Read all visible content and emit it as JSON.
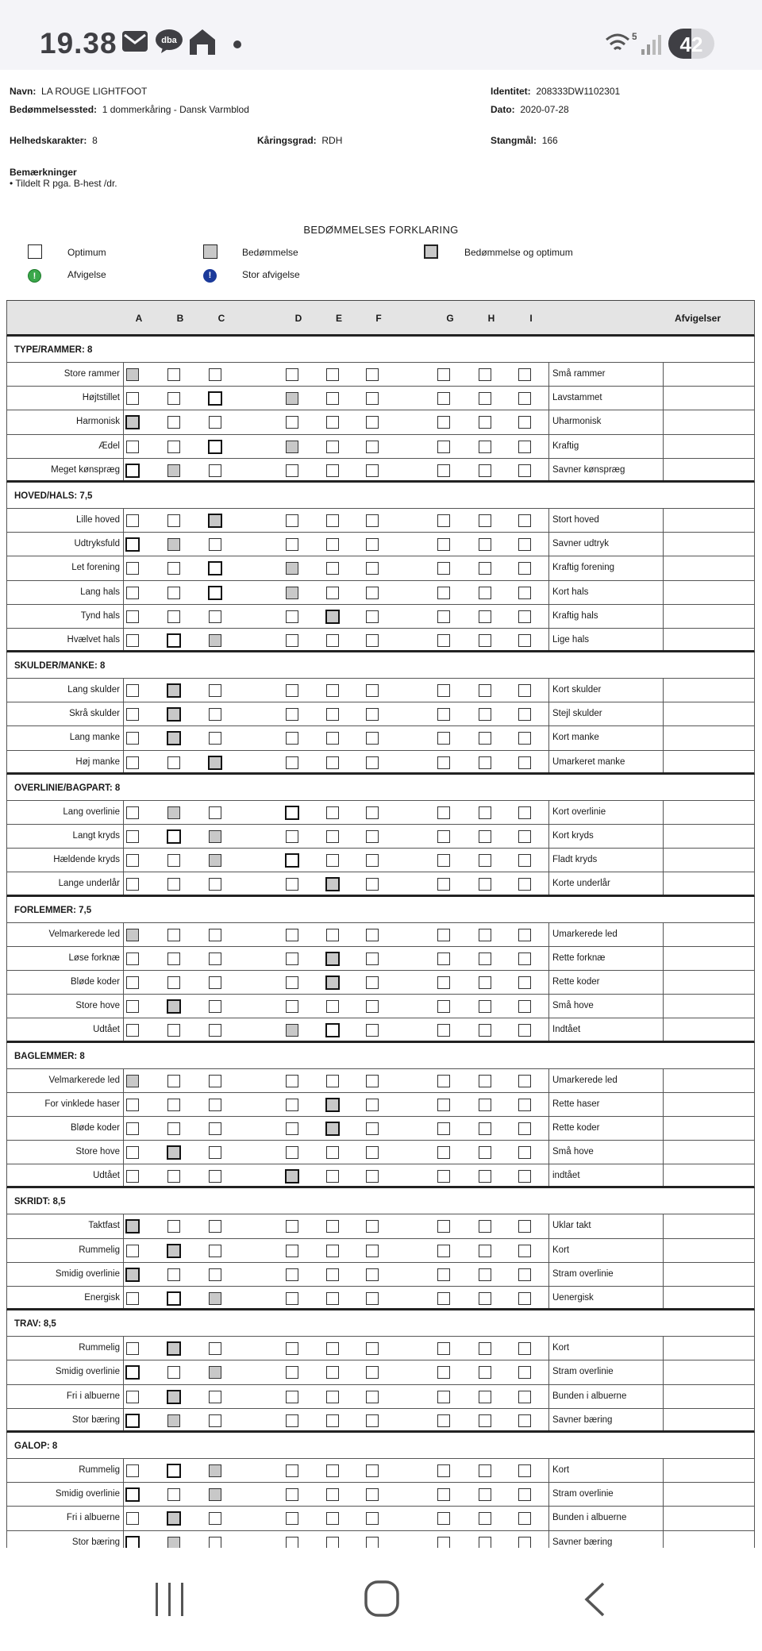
{
  "status": {
    "time": "19.38",
    "battery": "42",
    "signal_label": "5"
  },
  "header": {
    "name_label": "Navn:",
    "name": "LA ROUGE LIGHTFOOT",
    "id_label": "Identitet:",
    "id": "208333DW1102301",
    "venue_label": "Bedømmelsessted:",
    "venue": "1 dommerkåring - Dansk Varmblod",
    "date_label": "Dato:",
    "date": "2020-07-28",
    "overall_label": "Helhedskarakter:",
    "overall": "8",
    "grade_label": "Kåringsgrad:",
    "grade": "RDH",
    "height_label": "Stangmål:",
    "height": "166",
    "remarks_title": "Bemærkninger",
    "remark": "Tildelt R pga. B-hest /dr."
  },
  "legend": {
    "title": "BEDØMMELSES FORKLARING",
    "optimum": "Optimum",
    "judgement": "Bedømmelse",
    "judgement_optimum": "Bedømmelse og optimum",
    "deviation": "Afvigelse",
    "major_deviation": "Stor afvigelse",
    "icon_mark": "!"
  },
  "table": {
    "columns": [
      "A",
      "B",
      "C",
      "D",
      "E",
      "F",
      "G",
      "H",
      "I"
    ],
    "deviations_header": "Afvigelser"
  },
  "sections": [
    {
      "title": "TYPE/RAMMER: 8",
      "rows": [
        {
          "left": "Store rammer",
          "right": "Små rammer",
          "marks": {
            "A": "g"
          }
        },
        {
          "left": "Højtstillet",
          "right": "Lavstammet",
          "marks": {
            "C": "o",
            "D": "g"
          }
        },
        {
          "left": "Harmonisk",
          "right": "Uharmonisk",
          "marks": {
            "A": "go"
          }
        },
        {
          "left": "Ædel",
          "right": "Kraftig",
          "marks": {
            "C": "o",
            "D": "g"
          }
        },
        {
          "left": "Meget kønspræg",
          "right": "Savner kønspræg",
          "marks": {
            "A": "o",
            "B": "g"
          }
        }
      ]
    },
    {
      "title": "HOVED/HALS: 7,5",
      "rows": [
        {
          "left": "Lille hoved",
          "right": "Stort hoved",
          "marks": {
            "C": "go"
          }
        },
        {
          "left": "Udtryksfuld",
          "right": "Savner udtryk",
          "marks": {
            "A": "o",
            "B": "g"
          }
        },
        {
          "left": "Let forening",
          "right": "Kraftig forening",
          "marks": {
            "C": "o",
            "D": "g"
          }
        },
        {
          "left": "Lang hals",
          "right": "Kort hals",
          "marks": {
            "C": "o",
            "D": "g"
          }
        },
        {
          "left": "Tynd hals",
          "right": "Kraftig hals",
          "marks": {
            "E": "go"
          }
        },
        {
          "left": "Hvælvet hals",
          "right": "Lige hals",
          "marks": {
            "B": "o",
            "C": "g"
          }
        }
      ]
    },
    {
      "title": "SKULDER/MANKE: 8",
      "rows": [
        {
          "left": "Lang skulder",
          "right": "Kort skulder",
          "marks": {
            "B": "go"
          }
        },
        {
          "left": "Skrå skulder",
          "right": "Stejl skulder",
          "marks": {
            "B": "go"
          }
        },
        {
          "left": "Lang manke",
          "right": "Kort manke",
          "marks": {
            "B": "go"
          }
        },
        {
          "left": "Høj manke",
          "right": "Umarkeret manke",
          "marks": {
            "C": "go"
          }
        }
      ]
    },
    {
      "title": "OVERLINIE/BAGPART: 8",
      "rows": [
        {
          "left": "Lang overlinie",
          "right": "Kort overlinie",
          "marks": {
            "B": "g",
            "D": "o"
          }
        },
        {
          "left": "Langt kryds",
          "right": "Kort kryds",
          "marks": {
            "B": "o",
            "C": "g"
          }
        },
        {
          "left": "Hældende kryds",
          "right": "Fladt kryds",
          "marks": {
            "C": "g",
            "D": "o"
          }
        },
        {
          "left": "Lange underlår",
          "right": "Korte underlår",
          "marks": {
            "E": "go"
          }
        }
      ]
    },
    {
      "title": "FORLEMMER: 7,5",
      "rows": [
        {
          "left": "Velmarkerede led",
          "right": "Umarkerede led",
          "marks": {
            "A": "g"
          }
        },
        {
          "left": "Løse forknæ",
          "right": "Rette forknæ",
          "marks": {
            "E": "go"
          }
        },
        {
          "left": "Bløde koder",
          "right": "Rette koder",
          "marks": {
            "E": "go"
          }
        },
        {
          "left": "Store hove",
          "right": "Små hove",
          "marks": {
            "B": "go"
          }
        },
        {
          "left": "Udtået",
          "right": "Indtået",
          "marks": {
            "D": "g",
            "E": "o"
          }
        }
      ]
    },
    {
      "title": "BAGLEMMER: 8",
      "rows": [
        {
          "left": "Velmarkerede led",
          "right": "Umarkerede led",
          "marks": {
            "A": "g"
          }
        },
        {
          "left": "For vinklede haser",
          "right": "Rette haser",
          "marks": {
            "E": "go"
          }
        },
        {
          "left": "Bløde koder",
          "right": "Rette koder",
          "marks": {
            "E": "go"
          }
        },
        {
          "left": "Store hove",
          "right": "Små hove",
          "marks": {
            "B": "go"
          }
        },
        {
          "left": "Udtået",
          "right": "indtået",
          "marks": {
            "D": "go"
          }
        }
      ]
    },
    {
      "title": "SKRIDT: 8,5",
      "rows": [
        {
          "left": "Taktfast",
          "right": "Uklar takt",
          "marks": {
            "A": "go"
          }
        },
        {
          "left": "Rummelig",
          "right": "Kort",
          "marks": {
            "B": "go"
          }
        },
        {
          "left": "Smidig overlinie",
          "right": "Stram overlinie",
          "marks": {
            "A": "go"
          }
        },
        {
          "left": "Energisk",
          "right": "Uenergisk",
          "marks": {
            "B": "o",
            "C": "g"
          }
        }
      ]
    },
    {
      "title": "TRAV: 8,5",
      "rows": [
        {
          "left": "Rummelig",
          "right": "Kort",
          "marks": {
            "B": "go"
          }
        },
        {
          "left": "Smidig overlinie",
          "right": "Stram overlinie",
          "marks": {
            "A": "o",
            "C": "g"
          }
        },
        {
          "left": "Fri i albuerne",
          "right": "Bunden i albuerne",
          "marks": {
            "B": "go"
          }
        },
        {
          "left": "Stor bæring",
          "right": "Savner bæring",
          "marks": {
            "A": "o",
            "B": "g"
          }
        }
      ]
    },
    {
      "title": "GALOP: 8",
      "rows": [
        {
          "left": "Rummelig",
          "right": "Kort",
          "marks": {
            "B": "o",
            "C": "g"
          }
        },
        {
          "left": "Smidig overlinie",
          "right": "Stram overlinie",
          "marks": {
            "A": "o",
            "C": "g"
          }
        },
        {
          "left": "Fri i albuerne",
          "right": "Bunden i albuerne",
          "marks": {
            "B": "go"
          }
        },
        {
          "left": "Stor bæring",
          "right": "Savner bæring",
          "marks": {
            "A": "o",
            "B": "g"
          }
        }
      ]
    }
  ]
}
